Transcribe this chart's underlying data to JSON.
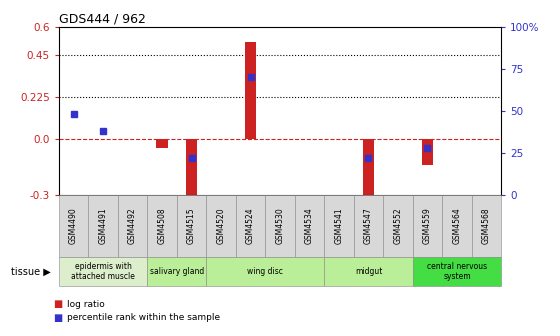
{
  "title": "GDS444 / 962",
  "samples": [
    "GSM4490",
    "GSM4491",
    "GSM4492",
    "GSM4508",
    "GSM4515",
    "GSM4520",
    "GSM4524",
    "GSM4530",
    "GSM4534",
    "GSM4541",
    "GSM4547",
    "GSM4552",
    "GSM4559",
    "GSM4564",
    "GSM4568"
  ],
  "log_ratio": [
    0.0,
    0.0,
    0.0,
    -0.05,
    -0.32,
    0.0,
    0.52,
    0.0,
    0.0,
    0.0,
    -0.4,
    0.0,
    -0.14,
    0.0,
    0.0
  ],
  "percentile_rank": [
    48,
    38,
    0,
    0,
    22,
    0,
    70,
    0,
    0,
    0,
    22,
    0,
    28,
    0,
    0
  ],
  "ylim_left": [
    -0.3,
    0.6
  ],
  "ylim_right": [
    0,
    100
  ],
  "yticks_left": [
    -0.3,
    0.0,
    0.225,
    0.45,
    0.6
  ],
  "yticks_right": [
    0,
    25,
    50,
    75,
    100
  ],
  "hlines": [
    0.225,
    0.45
  ],
  "bar_color": "#cc2222",
  "dot_color": "#3333cc",
  "zero_line_color": "#cc2222",
  "tissue_groups": [
    {
      "label": "epidermis with\nattached muscle",
      "start": 0,
      "end": 3,
      "color": "#ddeecc"
    },
    {
      "label": "salivary gland",
      "start": 3,
      "end": 5,
      "color": "#bbee99"
    },
    {
      "label": "wing disc",
      "start": 5,
      "end": 9,
      "color": "#bbee99"
    },
    {
      "label": "midgut",
      "start": 9,
      "end": 12,
      "color": "#bbee99"
    },
    {
      "label": "central nervous\nsystem",
      "start": 12,
      "end": 15,
      "color": "#44dd44"
    }
  ]
}
